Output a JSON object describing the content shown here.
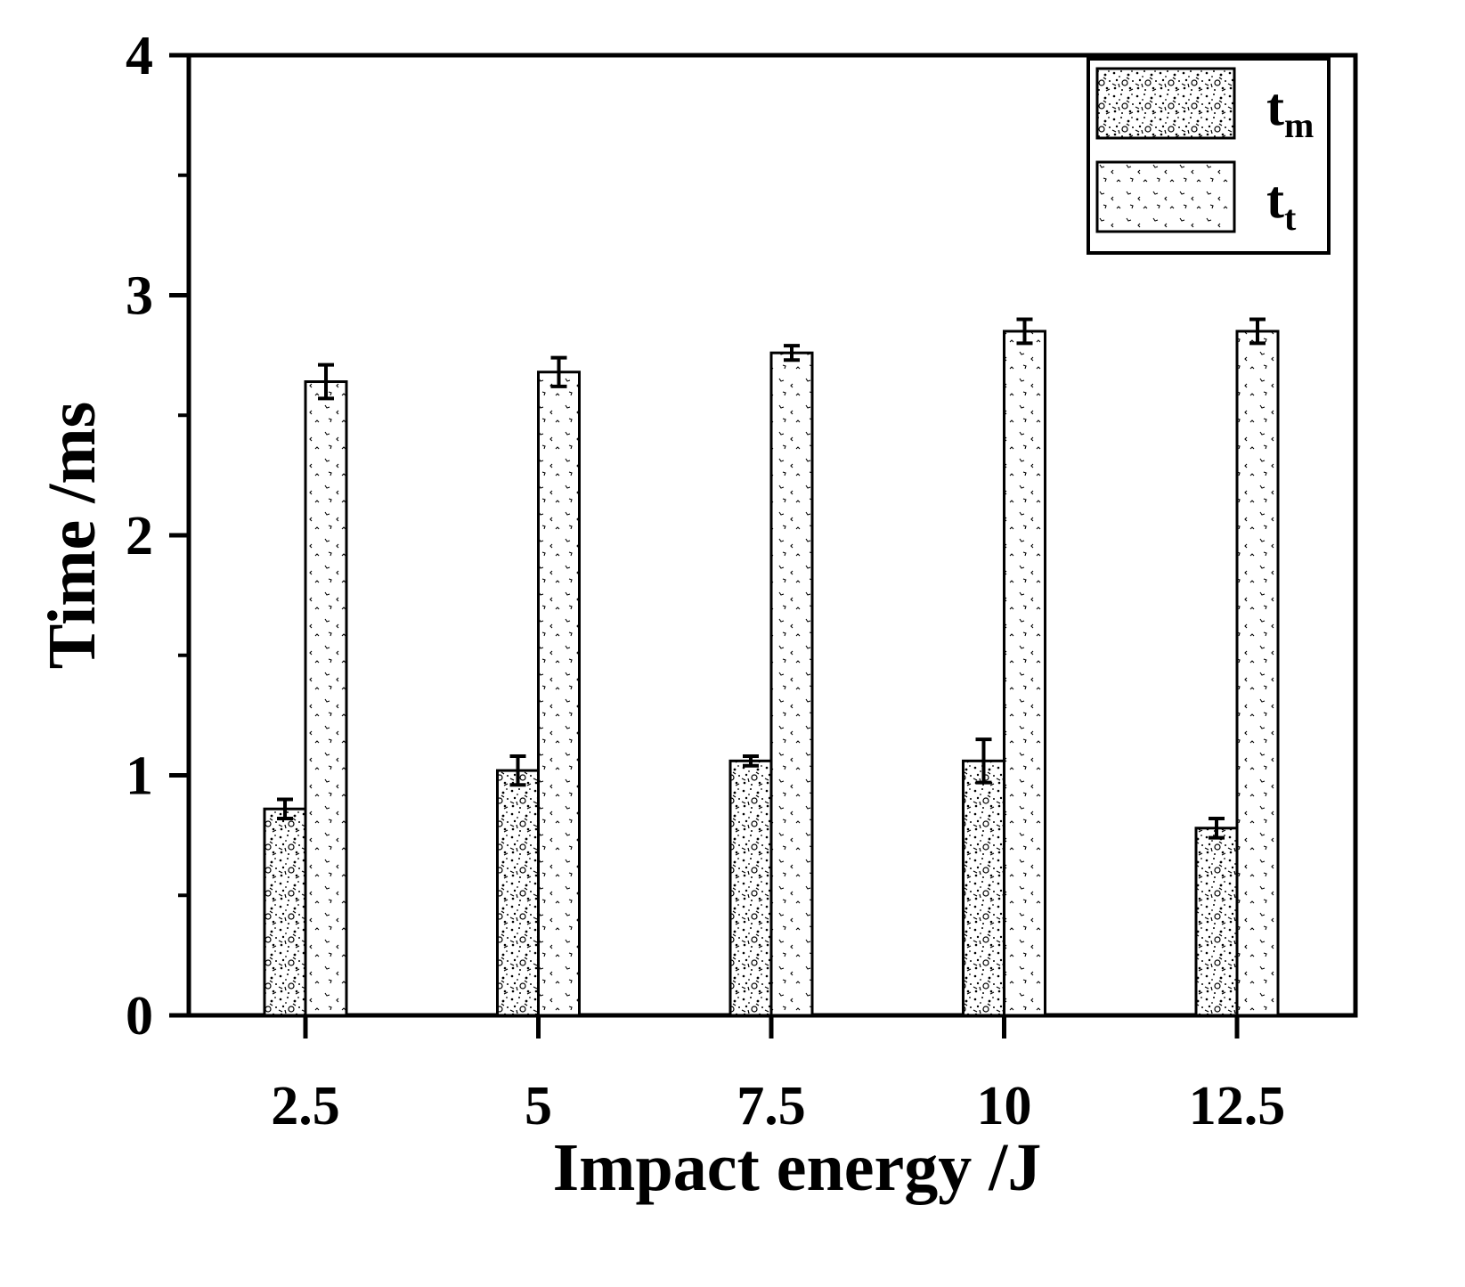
{
  "chart_data": {
    "type": "bar",
    "title": "",
    "xlabel": "Impact energy /J",
    "ylabel": "Time /ms",
    "categories": [
      "2.5",
      "5",
      "7.5",
      "10",
      "12.5"
    ],
    "ylim": [
      0,
      4
    ],
    "yticks": [
      "0",
      "1",
      "2",
      "3",
      "4"
    ],
    "grid": false,
    "legend_position": "top-right",
    "series": [
      {
        "name": "tm",
        "label_main": "t",
        "label_sub": "m",
        "values": [
          0.86,
          1.02,
          1.06,
          1.06,
          0.78
        ],
        "errors": [
          0.04,
          0.06,
          0.02,
          0.09,
          0.04
        ],
        "pattern": "dense-speckle"
      },
      {
        "name": "tt",
        "label_main": "t",
        "label_sub": "t",
        "values": [
          2.64,
          2.68,
          2.76,
          2.85,
          2.85
        ],
        "errors": [
          0.07,
          0.06,
          0.03,
          0.05,
          0.05
        ],
        "pattern": "sparse-dots"
      }
    ]
  }
}
